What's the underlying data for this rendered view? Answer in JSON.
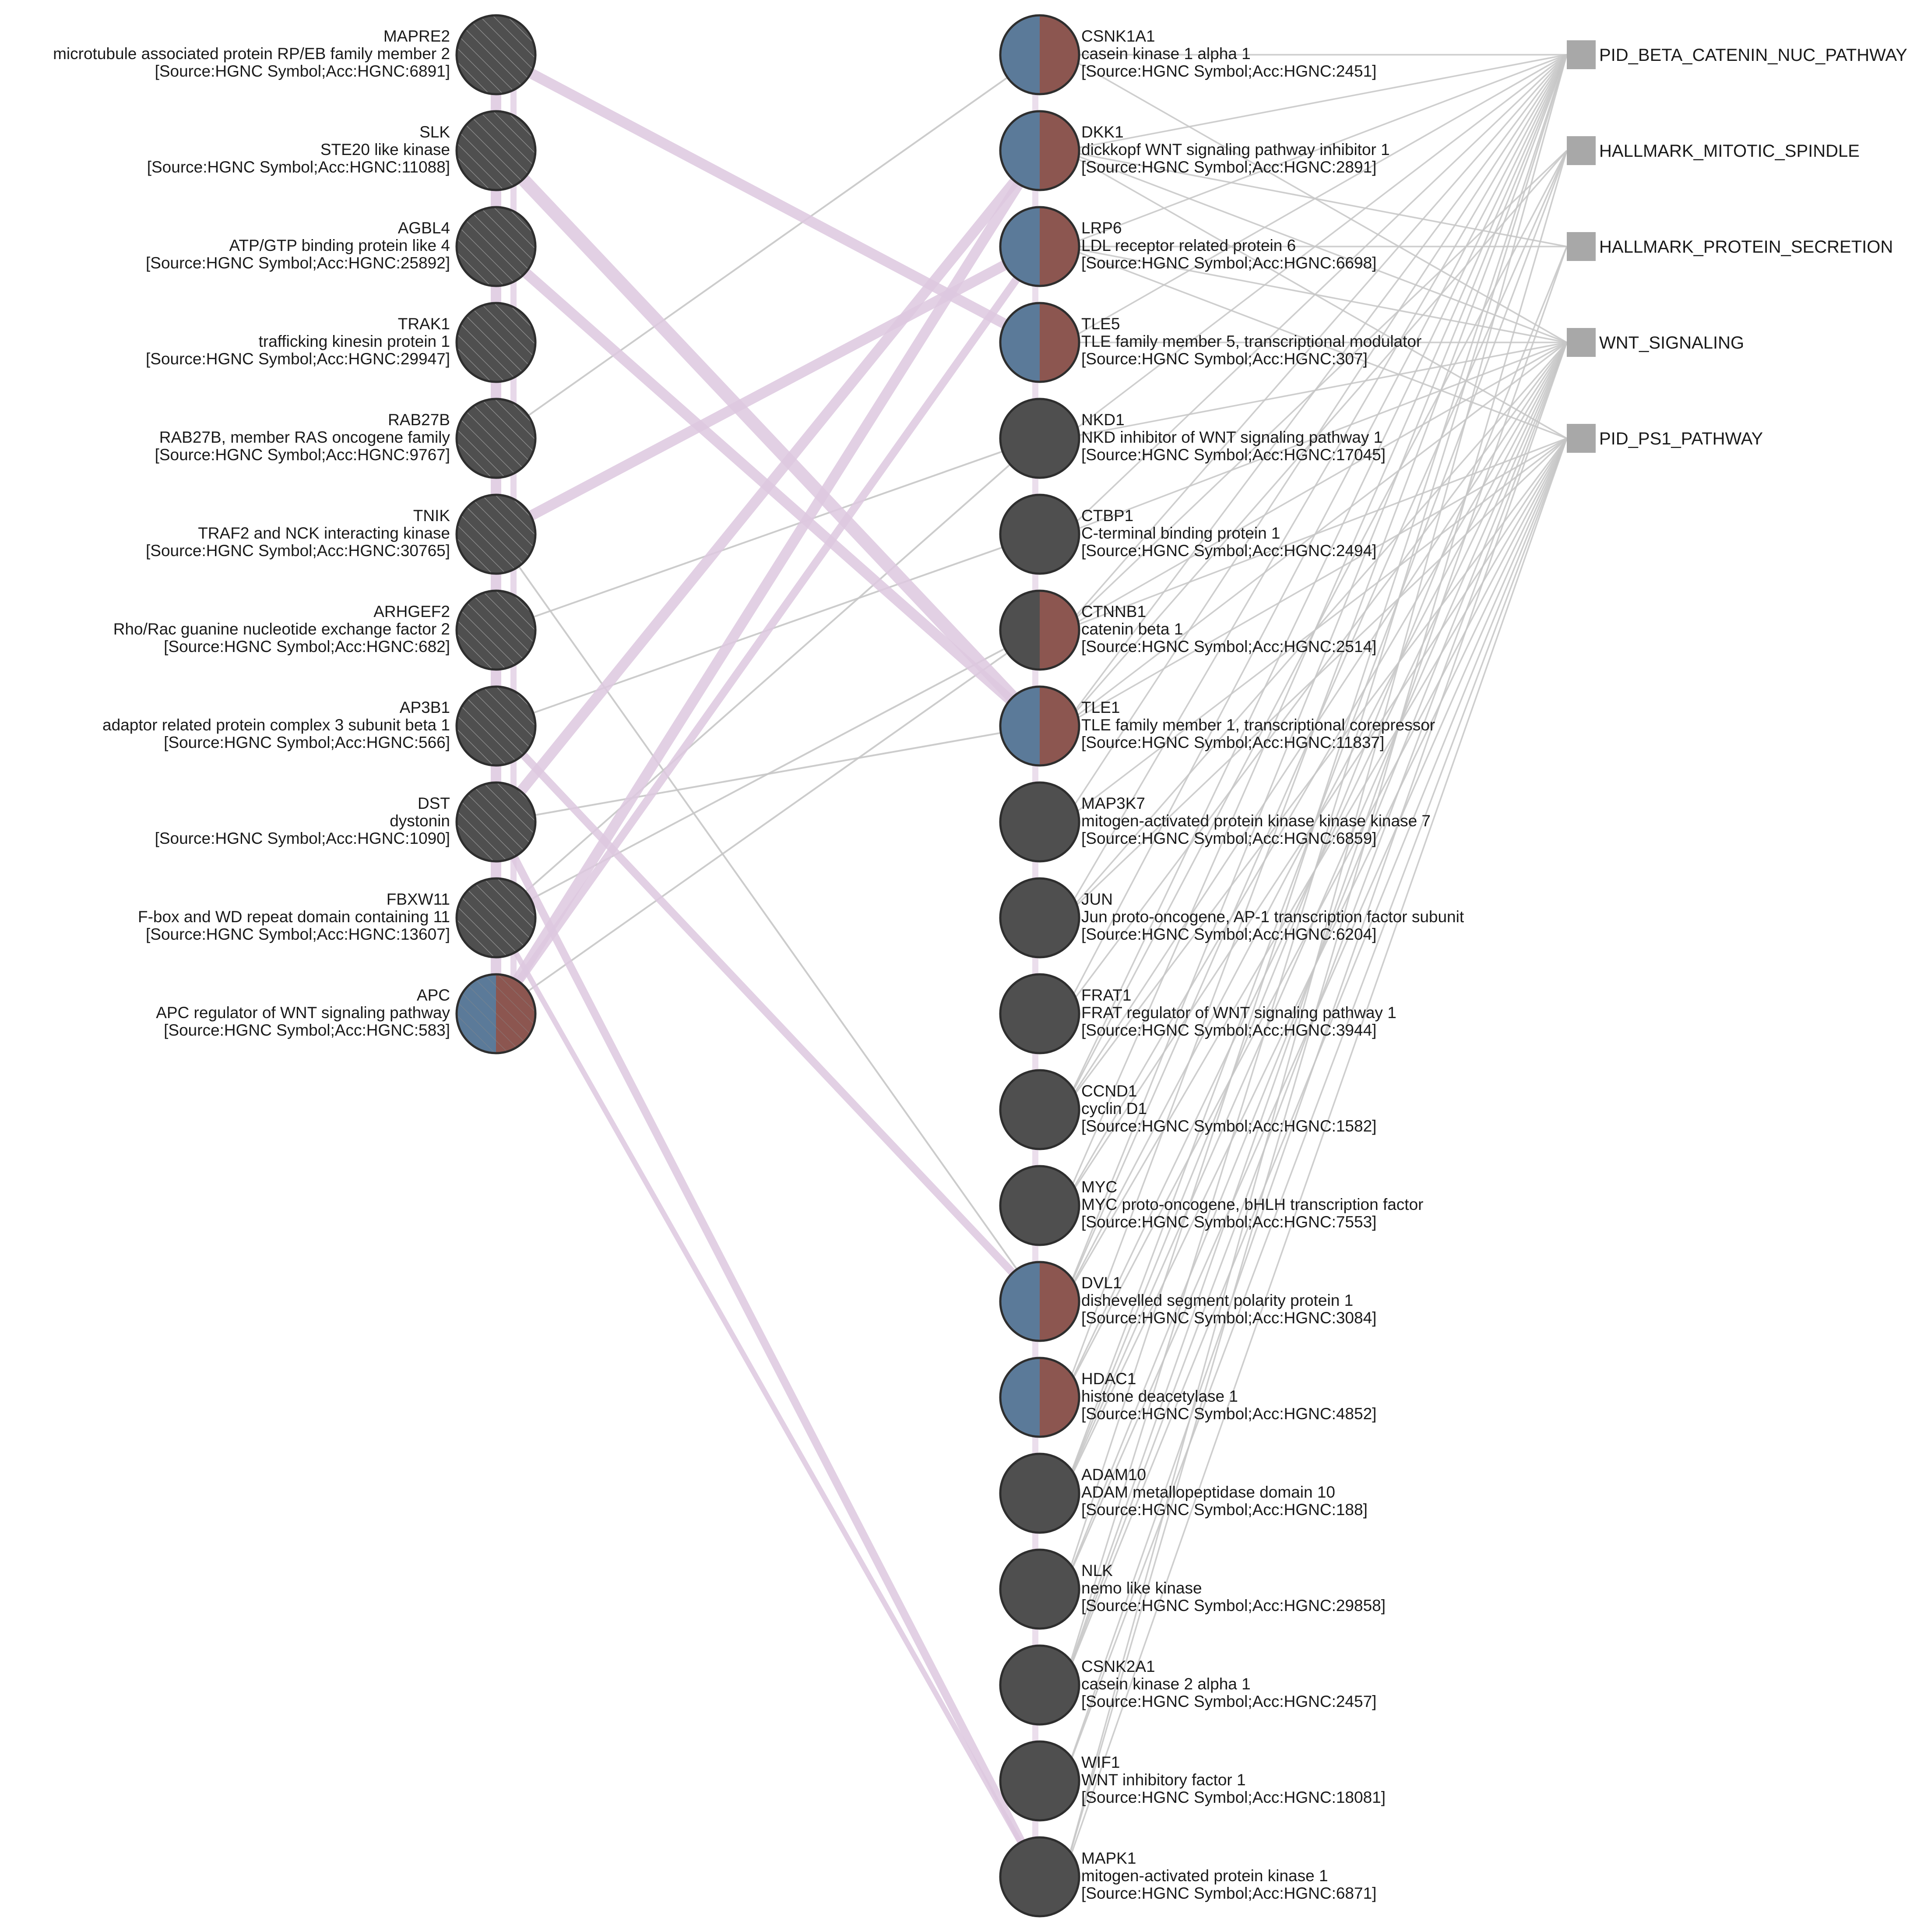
{
  "colors": {
    "background": "#ffffff",
    "node_dark": "#4f4f4f",
    "node_outline": "#2e2e2e",
    "half_blue": "#5b7a99",
    "half_red": "#8c5650",
    "hatch": "#8a8a8a",
    "term_fill": "#a8a8a8",
    "edge_gray": "#c6c6c6",
    "edge_purple": "#ddc8df"
  },
  "legend": {
    "left_style": "hatched-dark-circle",
    "right_style": "dark-or-split-circle",
    "term_style": "gray-square"
  },
  "left_nodes": [
    {
      "symbol": "MAPRE2",
      "name": "microtubule associated protein RP/EB family member 2",
      "source": "[Source:HGNC Symbol;Acc:HGNC:6891]",
      "style": "hatched"
    },
    {
      "symbol": "SLK",
      "name": "STE20 like kinase",
      "source": "[Source:HGNC Symbol;Acc:HGNC:11088]",
      "style": "hatched"
    },
    {
      "symbol": "AGBL4",
      "name": "ATP/GTP binding protein like 4",
      "source": "[Source:HGNC Symbol;Acc:HGNC:25892]",
      "style": "hatched"
    },
    {
      "symbol": "TRAK1",
      "name": "trafficking kinesin protein 1",
      "source": "[Source:HGNC Symbol;Acc:HGNC:29947]",
      "style": "hatched"
    },
    {
      "symbol": "RAB27B",
      "name": "RAB27B, member RAS oncogene family",
      "source": "[Source:HGNC Symbol;Acc:HGNC:9767]",
      "style": "hatched"
    },
    {
      "symbol": "TNIK",
      "name": "TRAF2 and NCK interacting kinase",
      "source": "[Source:HGNC Symbol;Acc:HGNC:30765]",
      "style": "hatched"
    },
    {
      "symbol": "ARHGEF2",
      "name": "Rho/Rac guanine nucleotide exchange factor 2",
      "source": "[Source:HGNC Symbol;Acc:HGNC:682]",
      "style": "hatched"
    },
    {
      "symbol": "AP3B1",
      "name": "adaptor related protein complex 3 subunit beta 1",
      "source": "[Source:HGNC Symbol;Acc:HGNC:566]",
      "style": "hatched"
    },
    {
      "symbol": "DST",
      "name": "dystonin",
      "source": "[Source:HGNC Symbol;Acc:HGNC:1090]",
      "style": "hatched"
    },
    {
      "symbol": "FBXW11",
      "name": "F-box and WD repeat domain containing 11",
      "source": "[Source:HGNC Symbol;Acc:HGNC:13607]",
      "style": "hatched"
    },
    {
      "symbol": "APC",
      "name": "APC regulator of WNT signaling pathway",
      "source": "[Source:HGNC Symbol;Acc:HGNC:583]",
      "style": "split-hatched"
    }
  ],
  "right_nodes": [
    {
      "symbol": "CSNK1A1",
      "name": "casein kinase 1 alpha 1",
      "source": "[Source:HGNC Symbol;Acc:HGNC:2451]",
      "style": "split"
    },
    {
      "symbol": "DKK1",
      "name": "dickkopf WNT signaling pathway inhibitor 1",
      "source": "[Source:HGNC Symbol;Acc:HGNC:2891]",
      "style": "split"
    },
    {
      "symbol": "LRP6",
      "name": "LDL receptor related protein 6",
      "source": "[Source:HGNC Symbol;Acc:HGNC:6698]",
      "style": "split"
    },
    {
      "symbol": "TLE5",
      "name": "TLE family member 5, transcriptional modulator",
      "source": "[Source:HGNC Symbol;Acc:HGNC:307]",
      "style": "split"
    },
    {
      "symbol": "NKD1",
      "name": "NKD inhibitor of WNT signaling pathway 1",
      "source": "[Source:HGNC Symbol;Acc:HGNC:17045]",
      "style": "dark"
    },
    {
      "symbol": "CTBP1",
      "name": "C-terminal binding protein 1",
      "source": "[Source:HGNC Symbol;Acc:HGNC:2494]",
      "style": "dark"
    },
    {
      "symbol": "CTNNB1",
      "name": "catenin beta 1",
      "source": "[Source:HGNC Symbol;Acc:HGNC:2514]",
      "style": "split-dark"
    },
    {
      "symbol": "TLE1",
      "name": "TLE family member 1, transcriptional corepressor",
      "source": "[Source:HGNC Symbol;Acc:HGNC:11837]",
      "style": "split"
    },
    {
      "symbol": "MAP3K7",
      "name": "mitogen-activated protein kinase kinase kinase 7",
      "source": "[Source:HGNC Symbol;Acc:HGNC:6859]",
      "style": "dark"
    },
    {
      "symbol": "JUN",
      "name": "Jun proto-oncogene, AP-1 transcription factor subunit",
      "source": "[Source:HGNC Symbol;Acc:HGNC:6204]",
      "style": "dark"
    },
    {
      "symbol": "FRAT1",
      "name": "FRAT regulator of WNT signaling pathway 1",
      "source": "[Source:HGNC Symbol;Acc:HGNC:3944]",
      "style": "dark"
    },
    {
      "symbol": "CCND1",
      "name": "cyclin D1",
      "source": "[Source:HGNC Symbol;Acc:HGNC:1582]",
      "style": "dark"
    },
    {
      "symbol": "MYC",
      "name": "MYC proto-oncogene, bHLH transcription factor",
      "source": "[Source:HGNC Symbol;Acc:HGNC:7553]",
      "style": "dark"
    },
    {
      "symbol": "DVL1",
      "name": "dishevelled segment polarity protein 1",
      "source": "[Source:HGNC Symbol;Acc:HGNC:3084]",
      "style": "split"
    },
    {
      "symbol": "HDAC1",
      "name": "histone deacetylase 1",
      "source": "[Source:HGNC Symbol;Acc:HGNC:4852]",
      "style": "split"
    },
    {
      "symbol": "ADAM10",
      "name": "ADAM metallopeptidase domain 10",
      "source": "[Source:HGNC Symbol;Acc:HGNC:188]",
      "style": "dark"
    },
    {
      "symbol": "NLK",
      "name": "nemo like kinase",
      "source": "[Source:HGNC Symbol;Acc:HGNC:29858]",
      "style": "dark"
    },
    {
      "symbol": "CSNK2A1",
      "name": "casein kinase 2 alpha 1",
      "source": "[Source:HGNC Symbol;Acc:HGNC:2457]",
      "style": "dark"
    },
    {
      "symbol": "WIF1",
      "name": "WNT inhibitory factor 1",
      "source": "[Source:HGNC Symbol;Acc:HGNC:18081]",
      "style": "dark"
    },
    {
      "symbol": "MAPK1",
      "name": "mitogen-activated protein kinase 1",
      "source": "[Source:HGNC Symbol;Acc:HGNC:6871]",
      "style": "dark"
    }
  ],
  "terms": [
    {
      "label": "PID_BETA_CATENIN_NUC_PATHWAY"
    },
    {
      "label": "HALLMARK_MITOTIC_SPINDLE"
    },
    {
      "label": "HALLMARK_PROTEIN_SECRETION"
    },
    {
      "label": "WNT_SIGNALING"
    },
    {
      "label": "PID_PS1_PATHWAY"
    }
  ],
  "interactions": [
    {
      "from": "MAPRE2",
      "to": "TLE5",
      "weight": 3
    },
    {
      "from": "SLK",
      "to": "TLE1",
      "weight": 4
    },
    {
      "from": "AGBL4",
      "to": "TLE1",
      "weight": 3
    },
    {
      "from": "TNIK",
      "to": "LRP6",
      "weight": 3
    },
    {
      "from": "DST",
      "to": "DKK1",
      "weight": 3
    },
    {
      "from": "APC",
      "to": "DKK1",
      "weight": 3
    },
    {
      "from": "APC",
      "to": "LRP6",
      "weight": 2
    },
    {
      "from": "AP3B1",
      "to": "DVL1",
      "weight": 2
    },
    {
      "from": "DST",
      "to": "MAPK1",
      "weight": 2
    },
    {
      "from": "FBXW11",
      "to": "MAPK1",
      "weight": 1
    },
    {
      "from": "MAPRE2",
      "to": "APC",
      "weight": 3
    }
  ],
  "links": [
    {
      "from": "ARHGEF2",
      "to": "NKD1"
    },
    {
      "from": "AP3B1",
      "to": "CTBP1"
    },
    {
      "from": "RAB27B",
      "to": "CSNK1A1"
    },
    {
      "from": "FBXW11",
      "to": "CTNNB1"
    },
    {
      "from": "DST",
      "to": "TLE1"
    },
    {
      "from": "APC",
      "to": "CTNNB1"
    },
    {
      "from": "TNIK",
      "to": "DVL1"
    },
    {
      "from": "FBXW11",
      "to": "NKD1"
    }
  ],
  "memberships": [
    {
      "term": 0,
      "nodes": [
        "CSNK1A1",
        "DKK1",
        "LRP6",
        "TLE5",
        "NKD1",
        "CTBP1",
        "CTNNB1",
        "TLE1",
        "MAP3K7",
        "JUN",
        "FRAT1",
        "CCND1",
        "MYC",
        "DVL1",
        "HDAC1",
        "NLK",
        "CSNK2A1",
        "MAPK1"
      ]
    },
    {
      "term": 1,
      "nodes": [
        "CTNNB1",
        "TLE1",
        "DVL1",
        "ADAM10",
        "CCND1",
        "MAPK1"
      ]
    },
    {
      "term": 2,
      "nodes": [
        "DKK1",
        "LRP6",
        "ADAM10",
        "CSNK2A1"
      ]
    },
    {
      "term": 3,
      "nodes": [
        "CSNK1A1",
        "DKK1",
        "LRP6",
        "TLE5",
        "NKD1",
        "CTBP1",
        "CTNNB1",
        "TLE1",
        "JUN",
        "FRAT1",
        "CCND1",
        "MYC",
        "DVL1",
        "HDAC1",
        "ADAM10",
        "NLK",
        "CSNK2A1",
        "WIF1"
      ]
    },
    {
      "term": 4,
      "nodes": [
        "DKK1",
        "LRP6",
        "CTNNB1",
        "TLE1",
        "MAP3K7",
        "JUN",
        "CCND1",
        "MYC",
        "DVL1",
        "HDAC1",
        "ADAM10",
        "NLK",
        "CSNK2A1",
        "WIF1",
        "MAPK1"
      ]
    }
  ]
}
